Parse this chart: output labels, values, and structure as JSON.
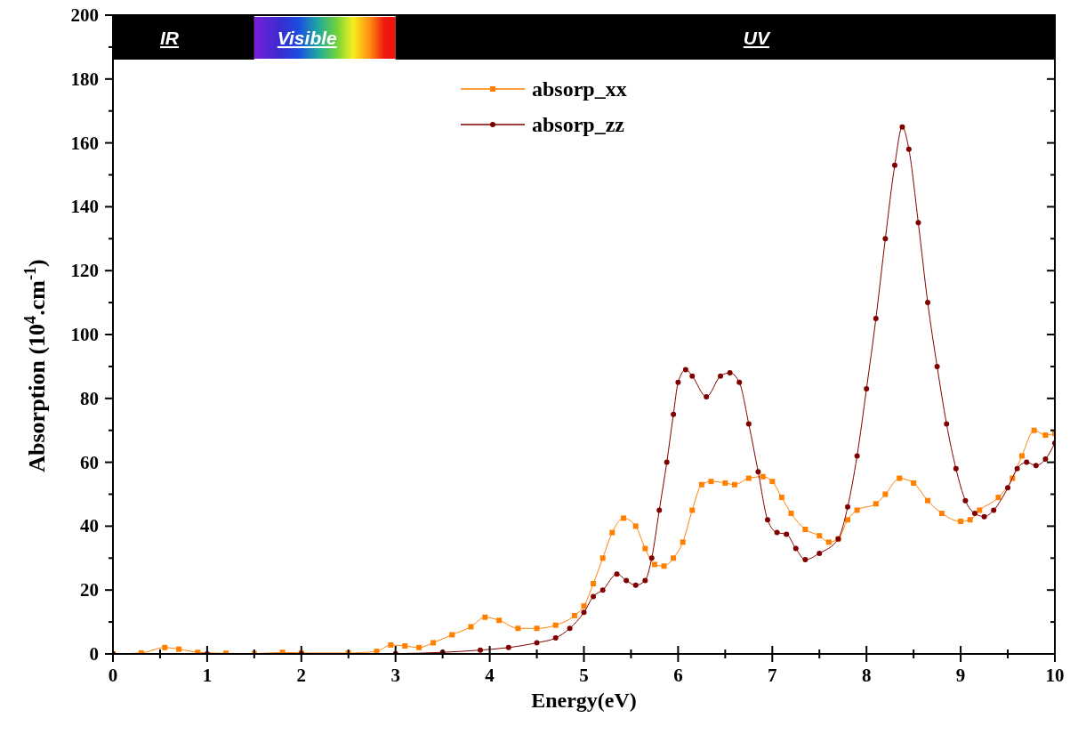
{
  "chart_data": {
    "type": "line",
    "xlabel": "Energy(eV)",
    "ylabel": "Absorption (10$^{4}$.cm$^{-1}$)",
    "xlim": [
      0,
      10
    ],
    "ylim": [
      0,
      200
    ],
    "xticks": [
      0,
      {
        "value": 0.5,
        "label": null
      },
      1,
      {
        "value": 1.5,
        "label": null
      },
      2,
      {
        "value": 2.5,
        "label": null
      },
      3,
      {
        "value": 3.5,
        "label": null
      },
      4,
      {
        "value": 4.5,
        "label": null
      },
      5,
      {
        "value": 5.5,
        "label": null
      },
      6,
      {
        "value": 6.5,
        "label": null
      },
      7,
      {
        "value": 7.5,
        "label": null
      },
      8,
      {
        "value": 8.5,
        "label": null
      },
      9,
      {
        "value": 9.5,
        "label": null
      },
      10
    ],
    "yticks": [
      0,
      {
        "value": 10,
        "label": null
      },
      20,
      {
        "value": 30,
        "label": null
      },
      40,
      {
        "value": 50,
        "label": null
      },
      60,
      {
        "value": 70,
        "label": null
      },
      80,
      {
        "value": 90,
        "label": null
      },
      100,
      {
        "value": 110,
        "label": null
      },
      120,
      {
        "value": 130,
        "label": null
      },
      140,
      {
        "value": 150,
        "label": null
      },
      160,
      {
        "value": 170,
        "label": null
      },
      180,
      {
        "value": 190,
        "label": null
      },
      200
    ],
    "grid": false,
    "legend": "top",
    "bands": [
      {
        "axis": "x",
        "from": 0,
        "to": 1.5,
        "label": "IR",
        "color": "#000000"
      },
      {
        "axis": "x",
        "from": 1.5,
        "to": 3.0,
        "label": "Visible"
      },
      {
        "axis": "x",
        "from": 3.0,
        "to": 10,
        "label": "UV",
        "color": "#000000"
      }
    ],
    "series": [
      {
        "name": "absorp_xx",
        "color": "#ff8000",
        "marker": "square",
        "x": [
          0,
          0.3,
          0.55,
          0.7,
          0.9,
          1.2,
          1.5,
          1.8,
          2.0,
          2.5,
          2.8,
          2.95,
          3.1,
          3.25,
          3.4,
          3.6,
          3.8,
          3.95,
          4.1,
          4.3,
          4.5,
          4.7,
          4.9,
          5.0,
          5.1,
          5.2,
          5.3,
          5.42,
          5.55,
          5.65,
          5.75,
          5.85,
          5.95,
          6.05,
          6.15,
          6.25,
          6.35,
          6.5,
          6.6,
          6.75,
          6.9,
          7.0,
          7.1,
          7.2,
          7.35,
          7.5,
          7.6,
          7.7,
          7.8,
          7.9,
          8.1,
          8.2,
          8.35,
          8.5,
          8.65,
          8.8,
          9.0,
          9.1,
          9.2,
          9.4,
          9.55,
          9.65,
          9.78,
          9.9,
          10
        ],
        "values": [
          0,
          0.3,
          2,
          1.5,
          0.5,
          0.2,
          0.1,
          0.5,
          0.3,
          0.3,
          0.8,
          2.8,
          2.5,
          2,
          3.5,
          6,
          8.5,
          11.5,
          10.5,
          8,
          8,
          9,
          12,
          15,
          22,
          30,
          38,
          42.5,
          40,
          33,
          28,
          27.5,
          30,
          35,
          45,
          53,
          54,
          53.5,
          53,
          55,
          55.5,
          54,
          49,
          44,
          39,
          37,
          35,
          36,
          42,
          45,
          47,
          50,
          55,
          53.5,
          48,
          44,
          41.5,
          42,
          45,
          49,
          55,
          62,
          70,
          68.5,
          69
        ]
      },
      {
        "name": "absorp_zz",
        "color": "#800000",
        "marker": "circle",
        "x": [
          0,
          1,
          2,
          3,
          3.5,
          3.9,
          4.2,
          4.5,
          4.7,
          4.85,
          5.0,
          5.1,
          5.2,
          5.35,
          5.45,
          5.55,
          5.65,
          5.72,
          5.8,
          5.88,
          5.95,
          6.0,
          6.08,
          6.15,
          6.3,
          6.45,
          6.55,
          6.65,
          6.75,
          6.85,
          6.95,
          7.05,
          7.15,
          7.25,
          7.35,
          7.5,
          7.7,
          7.8,
          7.9,
          8.0,
          8.1,
          8.2,
          8.3,
          8.38,
          8.45,
          8.55,
          8.65,
          8.75,
          8.85,
          8.95,
          9.05,
          9.15,
          9.25,
          9.35,
          9.5,
          9.6,
          9.7,
          9.8,
          9.9,
          10
        ],
        "values": [
          0,
          0,
          0,
          0.1,
          0.5,
          1.2,
          2,
          3.5,
          5,
          8,
          13,
          18,
          20,
          25,
          23,
          21.5,
          23,
          30,
          45,
          60,
          75,
          85,
          89,
          87,
          80.5,
          87,
          88,
          85,
          72,
          57,
          42,
          38,
          37.5,
          33,
          29.5,
          31.5,
          36,
          46,
          62,
          83,
          105,
          130,
          153,
          165,
          158,
          135,
          110,
          90,
          72,
          58,
          48,
          44,
          43,
          45,
          52,
          58,
          60,
          59,
          61,
          66
        ]
      }
    ]
  }
}
